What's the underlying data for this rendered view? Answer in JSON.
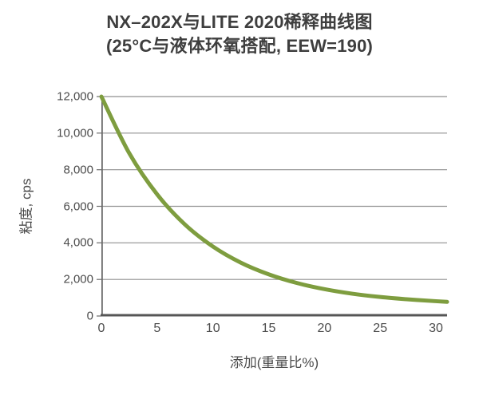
{
  "chart_data": {
    "type": "line",
    "title": "NX–202X与LITE 2020稀释曲线图",
    "subtitle": "(25°C与液体环氧搭配, EEW=190)",
    "xlabel": "添加(重量比%)",
    "ylabel": "粘度, cps",
    "xlim": [
      0,
      31
    ],
    "ylim": [
      0,
      12000
    ],
    "x_ticks": [
      0,
      5,
      10,
      15,
      20,
      25,
      30
    ],
    "y_ticks": [
      0,
      2000,
      4000,
      6000,
      8000,
      10000,
      12000
    ],
    "y_tick_labels": [
      "0",
      "2,000",
      "4,000",
      "6,000",
      "8,000",
      "10,000",
      "12,000"
    ],
    "grid": "horizontal-only",
    "legend": "none",
    "series": [
      {
        "color": "#7e9d3f",
        "x": [
          0,
          2.5,
          5,
          7.5,
          10,
          12.5,
          15,
          17.5,
          20,
          22.5,
          25,
          27.5,
          30,
          31
        ],
        "y": [
          12000,
          8900,
          6650,
          5000,
          3800,
          2920,
          2280,
          1810,
          1470,
          1220,
          1040,
          910,
          810,
          775
        ]
      }
    ],
    "colors": {
      "curve": "#7e9d3f",
      "grid": "#8f8f8f",
      "axis": "#565656",
      "y_axis": "#6a6a6a",
      "tick_text": "#4b4b4b",
      "title_text": "#3e3e3e"
    }
  }
}
